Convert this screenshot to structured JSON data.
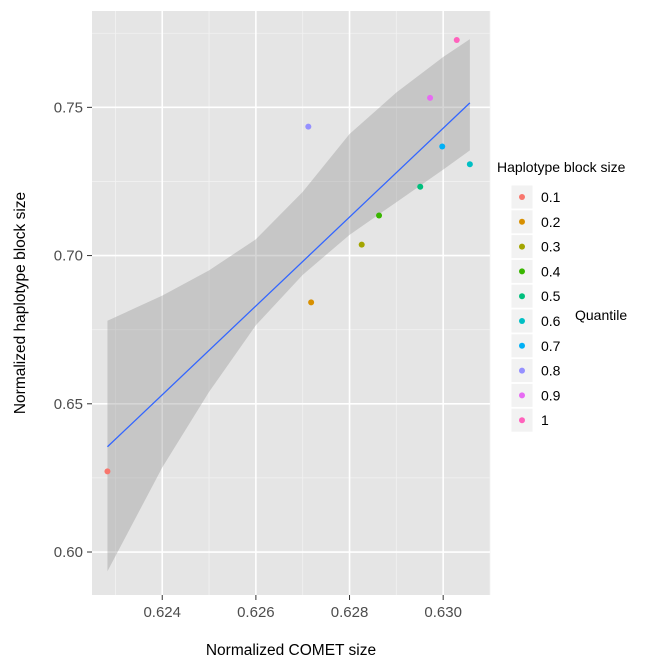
{
  "chart_data": {
    "type": "scatter",
    "xlabel": "Normalized COMET size",
    "ylabel": "Normalized haplotype block size",
    "xlim": [
      0.6225,
      0.631
    ],
    "ylim": [
      0.5855,
      0.7825
    ],
    "x_ticks": [
      0.624,
      0.626,
      0.628,
      0.63
    ],
    "x_tick_labels": [
      "0.624",
      "0.626",
      "0.628",
      "0.630"
    ],
    "y_ticks": [
      0.6,
      0.65,
      0.7,
      0.75
    ],
    "y_tick_labels": [
      "0.60",
      "0.65",
      "0.70",
      "0.75"
    ],
    "grid": true,
    "legend": {
      "title": "Haplotype block size",
      "side_label": "Quantile",
      "placement": "right",
      "entries": [
        {
          "label": "0.1",
          "color": "#F8766D"
        },
        {
          "label": "0.2",
          "color": "#D89000"
        },
        {
          "label": "0.3",
          "color": "#A3A500"
        },
        {
          "label": "0.4",
          "color": "#39B600"
        },
        {
          "label": "0.5",
          "color": "#00BF7D"
        },
        {
          "label": "0.6",
          "color": "#00BFC4"
        },
        {
          "label": "0.7",
          "color": "#00B0F6"
        },
        {
          "label": "0.8",
          "color": "#9590FF"
        },
        {
          "label": "0.9",
          "color": "#E76BF3"
        },
        {
          "label": "1",
          "color": "#FF62BC"
        }
      ]
    },
    "points": [
      {
        "x": 0.62283,
        "y": 0.6272,
        "quantile": "0.1"
      },
      {
        "x": 0.62718,
        "y": 0.6842,
        "quantile": "0.2"
      },
      {
        "x": 0.62826,
        "y": 0.7037,
        "quantile": "0.3"
      },
      {
        "x": 0.62863,
        "y": 0.7135,
        "quantile": "0.4"
      },
      {
        "x": 0.62951,
        "y": 0.7232,
        "quantile": "0.5"
      },
      {
        "x": 0.63057,
        "y": 0.7308,
        "quantile": "0.6"
      },
      {
        "x": 0.62998,
        "y": 0.7368,
        "quantile": "0.7"
      },
      {
        "x": 0.62712,
        "y": 0.7435,
        "quantile": "0.8"
      },
      {
        "x": 0.62972,
        "y": 0.7532,
        "quantile": "0.9"
      },
      {
        "x": 0.63029,
        "y": 0.7727,
        "quantile": "1"
      }
    ],
    "fit_line": {
      "type": "linear",
      "color": "#3366FF",
      "x": [
        0.62283,
        0.63057
      ],
      "y": [
        0.6355,
        0.7515
      ]
    },
    "confidence_band": {
      "color": "#999999",
      "x": [
        0.62283,
        0.624,
        0.625,
        0.626,
        0.627,
        0.628,
        0.629,
        0.63,
        0.63057
      ],
      "lower": [
        0.5935,
        0.6285,
        0.654,
        0.6765,
        0.6935,
        0.707,
        0.718,
        0.729,
        0.7355
      ],
      "upper": [
        0.678,
        0.6865,
        0.695,
        0.7055,
        0.7215,
        0.741,
        0.755,
        0.767,
        0.773
      ]
    }
  }
}
